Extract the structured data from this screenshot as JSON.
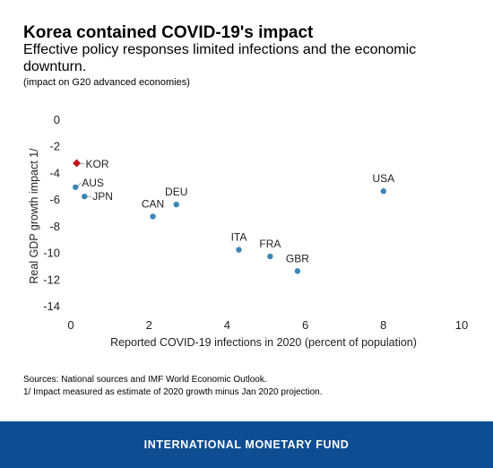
{
  "header": {
    "title": "Korea contained COVID-19's impact",
    "subtitle": "Effective policy responses limited infections and the economic downturn.",
    "note": "(impact on G20 advanced economies)"
  },
  "footnotes": {
    "sources": "Sources: National sources and IMF World Economic Outlook.",
    "note1": "1/ Impact measured as estimate of 2020 growth minus Jan 2020 projection."
  },
  "footer": {
    "label": "INTERNATIONAL MONETARY FUND"
  },
  "colors": {
    "point": "#3a87b5",
    "highlight": "#c0161d",
    "brand": "#0e4d92"
  },
  "chart_data": {
    "type": "scatter",
    "xlabel": "Reported COVID-19 infections in 2020 (percent of population)",
    "ylabel": "Real GDP growth impact 1/",
    "xlim": [
      0,
      10
    ],
    "ylim": [
      -14,
      0
    ],
    "xticks": [
      0,
      2,
      4,
      6,
      8,
      10
    ],
    "yticks": [
      0,
      -2,
      -4,
      -6,
      -8,
      -10,
      -12,
      -14
    ],
    "grid": false,
    "points": [
      {
        "label": "KOR",
        "x": 0.15,
        "y": -3.3,
        "highlight": true
      },
      {
        "label": "AUS",
        "x": 0.12,
        "y": -5.1
      },
      {
        "label": "JPN",
        "x": 0.35,
        "y": -5.8
      },
      {
        "label": "CAN",
        "x": 2.1,
        "y": -7.3
      },
      {
        "label": "DEU",
        "x": 2.7,
        "y": -6.4
      },
      {
        "label": "ITA",
        "x": 4.3,
        "y": -9.8
      },
      {
        "label": "FRA",
        "x": 5.1,
        "y": -10.3
      },
      {
        "label": "GBR",
        "x": 5.8,
        "y": -11.4
      },
      {
        "label": "USA",
        "x": 8.0,
        "y": -5.4
      }
    ]
  }
}
